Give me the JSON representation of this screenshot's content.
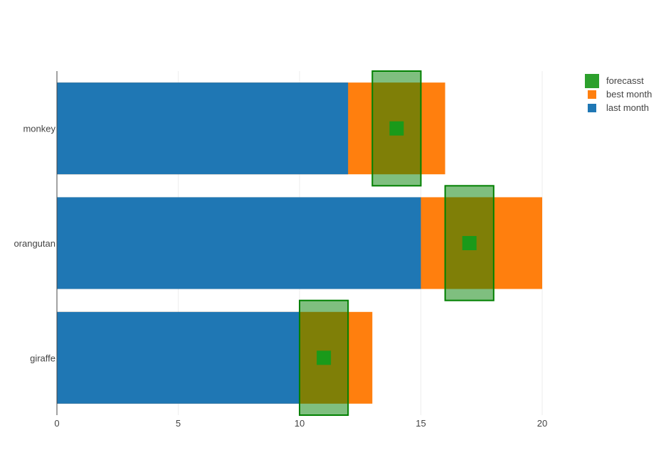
{
  "chart_data": {
    "type": "bar",
    "orientation": "horizontal",
    "categories": [
      "monkey",
      "orangutan",
      "giraffe"
    ],
    "series": [
      {
        "name": "last month",
        "type": "bar",
        "color": "#1f77b4",
        "values": [
          12,
          15,
          10
        ]
      },
      {
        "name": "best month",
        "type": "bar",
        "color": "#ff7f0e",
        "values": [
          16,
          20,
          13
        ]
      },
      {
        "name": "forecasst",
        "type": "range-box",
        "color": "#2ca02c",
        "ranges": [
          [
            13,
            15
          ],
          [
            16,
            18
          ],
          [
            10,
            12
          ]
        ],
        "points": [
          14,
          17,
          11
        ]
      }
    ],
    "xlim": [
      0,
      20
    ],
    "xticks": [
      "0",
      "5",
      "10",
      "15",
      "20"
    ],
    "grid": true,
    "legend_position": "top-right"
  }
}
